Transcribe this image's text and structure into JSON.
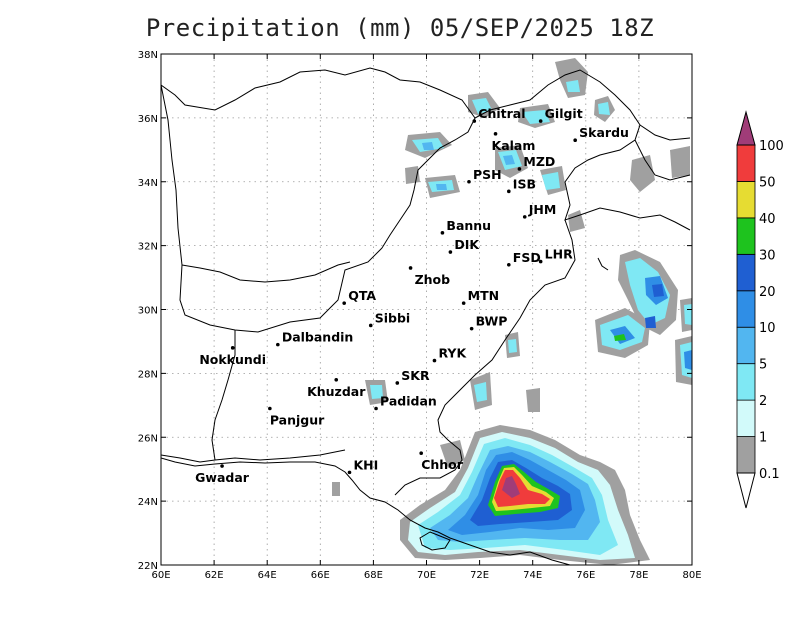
{
  "title": "Precipitation (mm) 05/SEP/2025 18Z",
  "axes": {
    "lon_ticks": [
      "60E",
      "62E",
      "64E",
      "66E",
      "68E",
      "70E",
      "72E",
      "74E",
      "76E",
      "78E",
      "80E"
    ],
    "lat_ticks": [
      "22N",
      "24N",
      "26N",
      "28N",
      "30N",
      "32N",
      "34N",
      "36N",
      "38N"
    ],
    "lon_range": [
      60,
      80
    ],
    "lat_range": [
      22,
      38
    ],
    "grid": "dotted"
  },
  "colorbar": {
    "labels": [
      "0.1",
      "1",
      "2",
      "5",
      "10",
      "20",
      "30",
      "40",
      "50",
      "100"
    ],
    "colors": [
      "#a0a0a0",
      "#d2fafa",
      "#7fe8f4",
      "#52b6f0",
      "#2f8ee6",
      "#1f5fd2",
      "#1ec31e",
      "#e6dc32",
      "#f03c3c",
      "#a03c78"
    ]
  },
  "cities": [
    {
      "name": "Chitral",
      "lon": 71.8,
      "lat": 35.9
    },
    {
      "name": "Kalam",
      "lon": 72.6,
      "lat": 35.5
    },
    {
      "name": "Gilgit",
      "lon": 74.3,
      "lat": 35.9
    },
    {
      "name": "Skardu",
      "lon": 75.6,
      "lat": 35.3
    },
    {
      "name": "MZD",
      "lon": 73.5,
      "lat": 34.4
    },
    {
      "name": "PSH",
      "lon": 71.6,
      "lat": 34.0
    },
    {
      "name": "ISB",
      "lon": 73.1,
      "lat": 33.7
    },
    {
      "name": "JHM",
      "lon": 73.7,
      "lat": 32.9
    },
    {
      "name": "Bannu",
      "lon": 70.6,
      "lat": 32.4
    },
    {
      "name": "DIK",
      "lon": 70.9,
      "lat": 31.8
    },
    {
      "name": "FSD",
      "lon": 73.1,
      "lat": 31.4
    },
    {
      "name": "LHR",
      "lon": 74.3,
      "lat": 31.5
    },
    {
      "name": "Zhob",
      "lon": 69.4,
      "lat": 31.3
    },
    {
      "name": "QTA",
      "lon": 66.9,
      "lat": 30.2
    },
    {
      "name": "MTN",
      "lon": 71.4,
      "lat": 30.2
    },
    {
      "name": "Sibbi",
      "lon": 67.9,
      "lat": 29.5
    },
    {
      "name": "BWP",
      "lon": 71.7,
      "lat": 29.4
    },
    {
      "name": "Dalbandin",
      "lon": 64.4,
      "lat": 28.9
    },
    {
      "name": "Nokkundi",
      "lon": 62.7,
      "lat": 28.8
    },
    {
      "name": "RYK",
      "lon": 70.3,
      "lat": 28.4
    },
    {
      "name": "Khuzdar",
      "lon": 66.6,
      "lat": 27.8
    },
    {
      "name": "SKR",
      "lon": 68.9,
      "lat": 27.7
    },
    {
      "name": "Padidan",
      "lon": 68.1,
      "lat": 26.9
    },
    {
      "name": "Panjgur",
      "lon": 64.1,
      "lat": 26.9
    },
    {
      "name": "Chhor",
      "lon": 69.8,
      "lat": 25.5
    },
    {
      "name": "KHI",
      "lon": 67.1,
      "lat": 24.9
    },
    {
      "name": "Gwadar",
      "lon": 62.3,
      "lat": 25.1
    }
  ]
}
